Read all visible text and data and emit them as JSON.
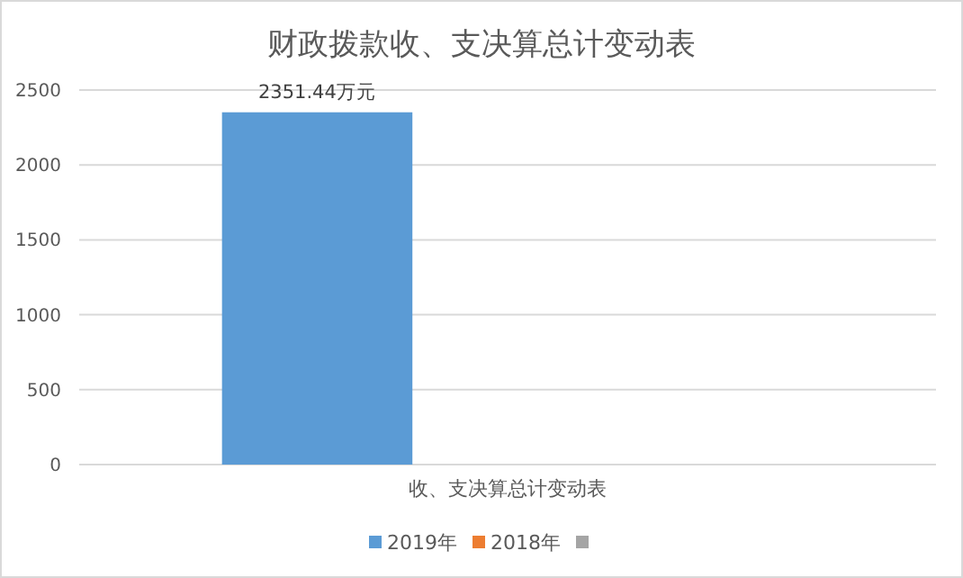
{
  "chart_data": {
    "type": "bar",
    "title": "财政拨款收、支决算总计变动表",
    "categories": [
      "收、支决算总计变动表"
    ],
    "series": [
      {
        "name": "2019年",
        "color": "#5b9bd5",
        "values": [
          2351.44
        ],
        "value_labels": [
          "2351.44万元"
        ]
      },
      {
        "name": "2018年",
        "color": "#ed7d31",
        "values": [
          null
        ]
      },
      {
        "color": "#a5a5a5",
        "values": [
          null
        ]
      }
    ],
    "ylim": [
      0,
      2500
    ],
    "yticks": [
      0,
      500,
      1000,
      1500,
      2000,
      2500
    ],
    "grid": "y",
    "legend": "bottom"
  }
}
